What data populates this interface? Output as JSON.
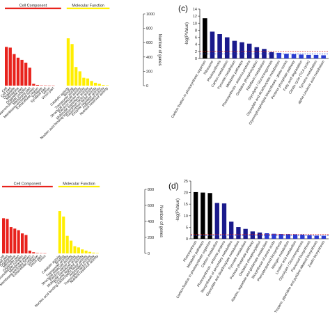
{
  "chart_data": [
    {
      "type": "bar",
      "groups": [
        {
          "label": "Cell Component",
          "color": "#e8221c",
          "categories": [
            "Cell",
            "Cell part",
            "Organelle",
            "Membrane",
            "Organelle part",
            "Macromolecular complex",
            "Membrane part",
            "Membrane-enclosed lumen",
            "Extracellular region",
            "Synapse",
            "Synapse part",
            "Virion",
            "Virion part"
          ],
          "values": [
            540,
            530,
            440,
            390,
            360,
            320,
            250,
            25,
            10,
            4,
            3,
            2,
            2
          ]
        },
        {
          "label": "Molecular Function",
          "color": "#ffee00",
          "categories": [
            "Catalytic activity",
            "Binding",
            "Transporter activity",
            "Structural molecule activity",
            "Electron carrier activity",
            "Molecular transducer activity",
            "Nucleic acid binding transcription factor activity",
            "Transcription factor activity",
            "Enzyme regulator activity",
            "Antioxidant activity",
            "Nutrient reservoir activity"
          ],
          "values": [
            660,
            580,
            260,
            200,
            110,
            100,
            65,
            40,
            25,
            10,
            5
          ]
        }
      ],
      "ylabel": "Number of genes",
      "ylim": [
        0,
        1000
      ],
      "yticks": [
        0,
        200,
        400,
        600,
        800,
        1000
      ]
    },
    {
      "type": "bar",
      "panel_label": "(c)",
      "categories": [
        "Carbon fixation in photosynthetic organism",
        "Ribosome",
        "Photosynthesis",
        "Carbon metabolism",
        "Pyruvate metabolism",
        "Metabolic pathways",
        "Photosynthesis - antenna proteins",
        "Oxidative phosphorylation",
        "Riboflavin metabolism",
        "Glycolysis / Gluconeogenesis",
        "Glyoxylate and dicarboxylate metabolism",
        "Glycerophospholipid biosynthesis - globo series",
        "Pentose phosphate pathway",
        "Fatty acid degradation",
        "Citrate cycle (TCA cycle)",
        "Tyrosine metabolism",
        "alpha-Linolenic acid metabolism"
      ],
      "colors": [
        "#000000",
        "#1a1a8c",
        "#1a1a8c",
        "#1a1a8c",
        "#1a1a8c",
        "#1a1a8c",
        "#1a1a8c",
        "#1a1a8c",
        "#1a1a8c",
        "#1a1a8c",
        "#2a3bd0",
        "#2a3bd0",
        "#2a3bd0",
        "#2a3bd0",
        "#2a3bd0",
        "#2a3bd0",
        "#2a3bd0"
      ],
      "values": [
        11.4,
        7.6,
        6.9,
        6.0,
        5.0,
        4.6,
        4.2,
        3.2,
        2.7,
        1.8,
        1.6,
        1.3,
        1.2,
        1.1,
        1.0,
        1.0,
        0.9
      ],
      "ylabel": "-log(PValue)",
      "ylim": [
        0,
        14
      ],
      "yticks": [
        0,
        2,
        4,
        6,
        8,
        10,
        12,
        14
      ],
      "thresholds": [
        1.3,
        2.0
      ]
    },
    {
      "type": "bar",
      "groups": [
        {
          "label": "Cell Component",
          "color": "#e8221c",
          "categories": [
            "Cell",
            "Cell part",
            "Organelle",
            "Membrane",
            "Organelle part",
            "Macromolecular complex",
            "Membrane part",
            "Membrane-enclosed lumen",
            "Extracellular region",
            "Synapse",
            "Virion part",
            "Virion"
          ],
          "values": [
            440,
            430,
            330,
            310,
            290,
            250,
            230,
            35,
            15,
            5,
            3,
            2
          ]
        },
        {
          "label": "Molecular Function",
          "color": "#ffee00",
          "categories": [
            "Catalytic activity",
            "Binding",
            "Transporter activity",
            "Structural molecule activity",
            "Electron carrier activity",
            "Molecular transducer activity",
            "Enzyme regulator activity",
            "Nucleic acid binding transcription factor activity",
            "Antioxidant activity",
            "Transcription factor activity",
            "Nutrient reservoir activity"
          ],
          "values": [
            530,
            460,
            220,
            160,
            90,
            75,
            50,
            35,
            20,
            10,
            5
          ]
        }
      ],
      "ylabel": "Number of genes",
      "ylim": [
        0,
        800
      ],
      "yticks": [
        0,
        200,
        400,
        600,
        800
      ]
    },
    {
      "type": "bar",
      "panel_label": "(d)",
      "categories": [
        "Photosynthesis",
        "Metabolic pathways",
        "Carbon fixation in photosynthetic organism",
        "Carbon metabolism",
        "Photosynthesis - antenna proteins",
        "Biosynthesis of secondary metabolites",
        "Glyoxylate and dicarboxylate metabolism",
        "Pyruvate metabolism",
        "Pentose phosphate pathway",
        "Oxidative phosphorylation",
        "Alanine, aspartate and glutamate metabolism",
        "Biosynthesis of amino acids",
        "Phenylpropanoid biosynthesis",
        "Nitrogen metabolism",
        "Linoleic acid metabolism",
        "Glycolysis / Gluconeogenesis",
        "Flavonoid biosynthesis",
        "Tropane, piperidine and pyridine alkaloid biosynthesis",
        "Zeatin biosynthesis"
      ],
      "colors": [
        "#000000",
        "#000000",
        "#000000",
        "#1a1a8c",
        "#1a1a8c",
        "#1a1a8c",
        "#1a1a8c",
        "#1a1a8c",
        "#1a1a8c",
        "#1a1a8c",
        "#2a3bd0",
        "#2a3bd0",
        "#2a3bd0",
        "#2a3bd0",
        "#2a3bd0",
        "#2a3bd0",
        "#2a3bd0",
        "#2a3bd0",
        "#2a3bd0"
      ],
      "values": [
        20.2,
        20.0,
        19.8,
        15.5,
        15.3,
        7.4,
        5.1,
        4.3,
        3.2,
        2.7,
        2.4,
        2.2,
        2.1,
        2.0,
        1.9,
        1.8,
        1.6,
        1.4,
        1.3
      ],
      "ylabel": "-log(PValue)",
      "ylim": [
        0,
        25
      ],
      "yticks": [
        0,
        5,
        10,
        15,
        20,
        25
      ],
      "thresholds": [
        1.3,
        2.0
      ]
    }
  ]
}
